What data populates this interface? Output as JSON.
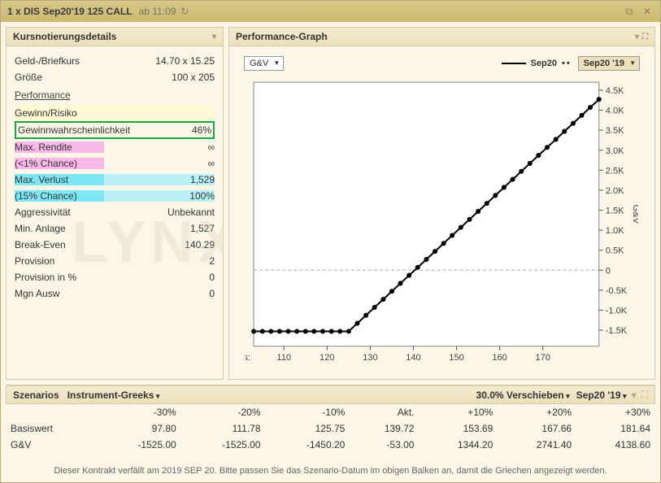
{
  "titlebar": {
    "title": "1 x DIS Sep20'19 125 CALL",
    "subtitle": "ab 11:09"
  },
  "leftPanel": {
    "header": "Kursnotierungsdetails",
    "rows": {
      "bidask_label": "Geld-/Briefkurs",
      "bidask_value": "14.70 x 15.25",
      "size_label": "Größe",
      "size_value": "100 x 205",
      "performance_section": "Performance",
      "gr_label": "Gewinn/Risiko",
      "gr_value": "",
      "prob_label": "Gewinnwahrscheinlichkeit",
      "prob_value": "46%",
      "maxret_label": "Max. Rendite",
      "maxret_value": "∞",
      "maxret2_label": "(<1% Chance)",
      "maxret2_value": "∞",
      "maxloss_label": "Max. Verlust",
      "maxloss_value": "1,529",
      "maxloss2_label": "(15% Chance)",
      "maxloss2_value": "100%",
      "aggr_label": "Aggressivität",
      "aggr_value": "Unbekannt",
      "minanl_label": "Min. Anlage",
      "minanl_value": "1,527",
      "be_label": "Break-Even",
      "be_value": "140.29",
      "prov_label": "Provision",
      "prov_value": "2",
      "provpct_label": "Provision in %",
      "provpct_value": "0",
      "mgn_label": "Mgn Ausw",
      "mgn_value": "0"
    }
  },
  "chart": {
    "header": "Performance-Graph",
    "dropdown_left": "G&V",
    "legend_series": "Sep20",
    "dropdown_right": "Sep20 '19",
    "x_label": "Kurs:",
    "y_label": "G&V",
    "x_ticks": [
      110,
      120,
      130,
      140,
      150,
      160,
      170
    ],
    "y_ticks": [
      "-1.5K",
      "-1.0K",
      "-0.5K",
      "0",
      "0.5K",
      "1.0K",
      "1.5K",
      "2.0K",
      "2.5K",
      "3.0K",
      "3.5K",
      "4.0K",
      "4.5K"
    ],
    "y_values": [
      -1500,
      -1000,
      -500,
      0,
      500,
      1000,
      1500,
      2000,
      2500,
      3000,
      3500,
      4000,
      4500
    ],
    "x_range": [
      103,
      183
    ],
    "y_range": [
      -1900,
      4700
    ],
    "series": {
      "color": "#000000",
      "marker": "circle",
      "marker_size": 3,
      "line_width": 2,
      "points": [
        [
          103,
          -1529
        ],
        [
          105,
          -1529
        ],
        [
          107,
          -1529
        ],
        [
          109,
          -1529
        ],
        [
          111,
          -1529
        ],
        [
          113,
          -1529
        ],
        [
          115,
          -1529
        ],
        [
          117,
          -1529
        ],
        [
          119,
          -1529
        ],
        [
          121,
          -1529
        ],
        [
          123,
          -1529
        ],
        [
          125,
          -1529
        ],
        [
          127,
          -1329
        ],
        [
          129,
          -1129
        ],
        [
          131,
          -929
        ],
        [
          133,
          -729
        ],
        [
          135,
          -529
        ],
        [
          137,
          -329
        ],
        [
          139,
          -129
        ],
        [
          141,
          70
        ],
        [
          143,
          270
        ],
        [
          145,
          470
        ],
        [
          147,
          670
        ],
        [
          149,
          870
        ],
        [
          151,
          1071
        ],
        [
          153,
          1271
        ],
        [
          155,
          1471
        ],
        [
          157,
          1671
        ],
        [
          159,
          1871
        ],
        [
          161,
          2071
        ],
        [
          163,
          2271
        ],
        [
          165,
          2471
        ],
        [
          167,
          2671
        ],
        [
          169,
          2871
        ],
        [
          171,
          3071
        ],
        [
          173,
          3271
        ],
        [
          175,
          3471
        ],
        [
          177,
          3671
        ],
        [
          179,
          3871
        ],
        [
          181,
          4071
        ],
        [
          183,
          4271
        ]
      ]
    },
    "background_color": "#ffffff",
    "zero_line_color": "#aaaaaa"
  },
  "scenarios": {
    "header": "Szenarios",
    "dd1": "Instrument-Greeks",
    "dd2": "30.0% Verschieben",
    "dd3": "Sep20 '19",
    "columns": [
      "",
      "-30%",
      "-20%",
      "-10%",
      "Akt.",
      "+10%",
      "+20%",
      "+30%"
    ],
    "rows": [
      {
        "label": "Basiswert",
        "cells": [
          "97.80",
          "111.78",
          "125.75",
          "139.72",
          "153.69",
          "167.66",
          "181.64"
        ]
      },
      {
        "label": "G&V",
        "cells": [
          "-1525.00",
          "-1525.00",
          "-1450.20",
          "-53.00",
          "1344.20",
          "2741.40",
          "4138.60"
        ]
      }
    ]
  },
  "footnote": "Dieser Kontrakt verfällt am 2019 SEP 20. Bitte passen Sie das Szenario-Datum im obigen Balken an, damit die Griechen angezeigt werden.",
  "watermark": "LYNX",
  "colors": {
    "panel_bg": "#fbf6e8",
    "header_grad_top": "#f3ead0",
    "header_grad_bot": "#ece0bb",
    "border": "#d6cda8",
    "highlight_green": "#18a83f",
    "highlight_pink": "#f8b8e8",
    "highlight_cyan": "#7de8f5",
    "highlight_yellow": "#fff9d6"
  }
}
